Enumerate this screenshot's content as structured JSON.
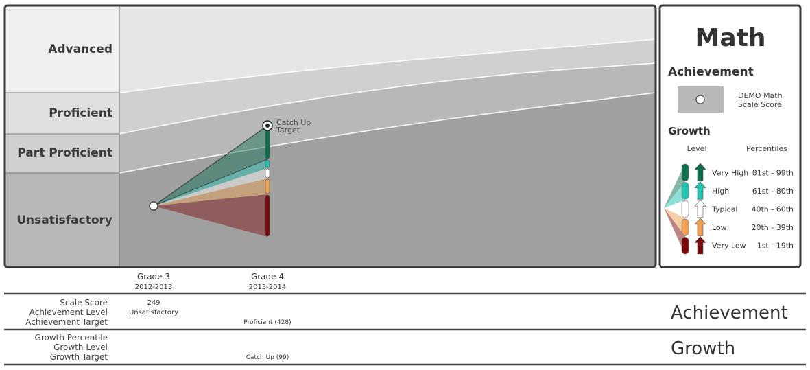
{
  "bands": [
    "Advanced",
    "Proficient",
    "Part Proficient",
    "Unsatisfactory"
  ],
  "columns": [
    {
      "grade": "Grade 3",
      "year": "2012-2013"
    },
    {
      "grade": "Grade 4",
      "year": "2013-2014"
    }
  ],
  "target_label": [
    "Catch Up",
    "Target"
  ],
  "legend": {
    "title": "Math",
    "achievement_heading": "Achievement",
    "marker_label": [
      "DEMO Math",
      "Scale Score"
    ],
    "growth_heading": "Growth",
    "level_header": "Level",
    "percentile_header": "Percentiles",
    "levels": [
      {
        "name": "Very High",
        "range": "81st  - 99th",
        "color": "#0b6e4f"
      },
      {
        "name": "High",
        "range": "61st - 80th",
        "color": "#20c4b0"
      },
      {
        "name": "Typical",
        "range": "40th - 60th",
        "color": "#ffffff"
      },
      {
        "name": "Low",
        "range": "20th - 39th",
        "color": "#f0a050"
      },
      {
        "name": "Very Low",
        "range": "1st - 19th",
        "color": "#7a0a0a"
      }
    ]
  },
  "table": {
    "achievement": {
      "label": "Achievement",
      "rows": [
        "Scale Score",
        "Achievement Level",
        "Achievement Target"
      ],
      "grade3": [
        "249",
        "Unsatisfactory"
      ],
      "grade4_target": "Proficient (428)"
    },
    "growth": {
      "label": "Growth",
      "rows": [
        "Growth Percentile",
        "Growth Level",
        "Growth Target"
      ],
      "grade4_target": "Catch Up (99)"
    }
  }
}
